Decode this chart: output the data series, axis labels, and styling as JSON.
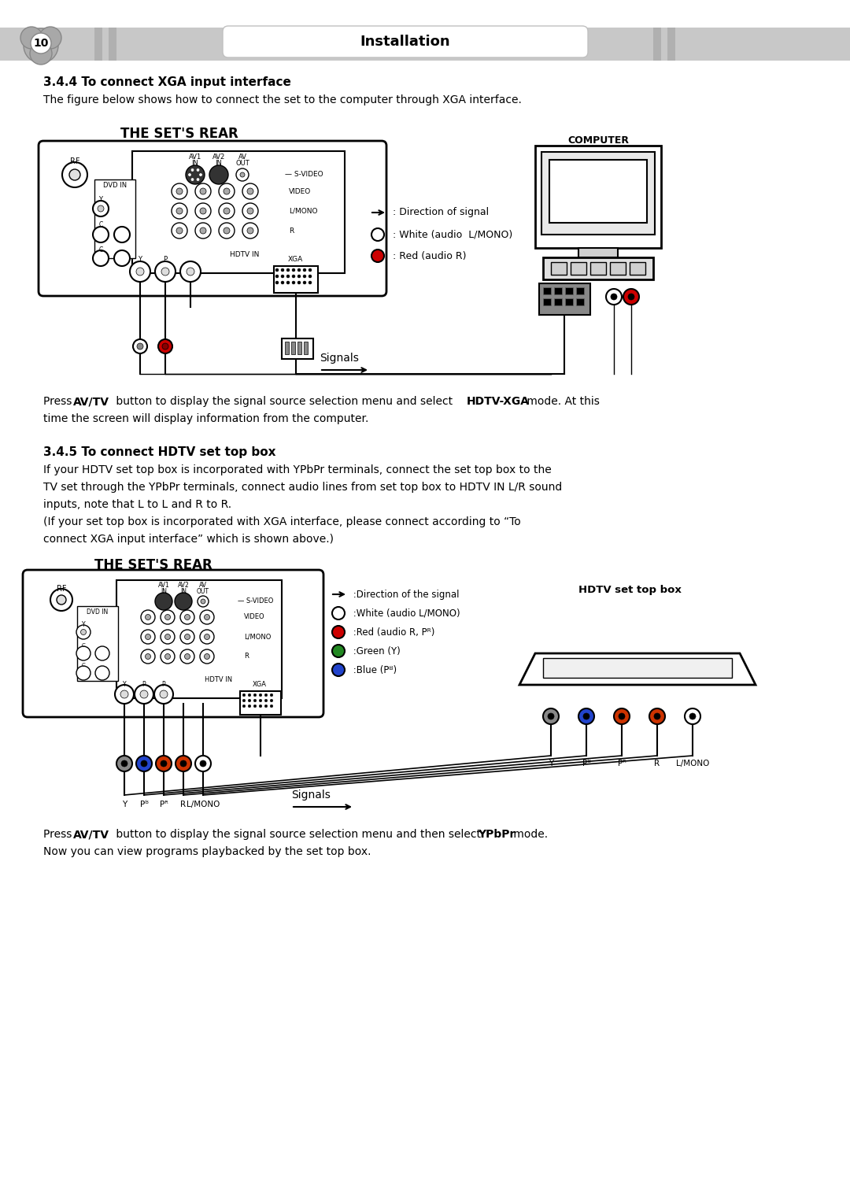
{
  "page_number": "10",
  "header_title": "Installation",
  "section1_heading": "3.4.4 To connect XGA input interface",
  "section1_desc": "The figure below shows how to connect the set to the computer through XGA interface.",
  "diagram1_title": "THE SET'S REAR",
  "diagram1_computer_label": "COMPUTER",
  "diagram1_signals_label": "Signals",
  "diagram1_legend": [
    " : Direction of signal",
    " : White (audio  L/MONO)",
    " : Red (audio R)"
  ],
  "section2_heading": "3.4.5 To connect HDTV set top box",
  "section2_desc1": "If your HDTV set top box is incorporated with YPbPr terminals, connect the set top box to the",
  "section2_desc2": "TV set through the YPbPr terminals, connect audio lines from set top box to HDTV IN L/R sound",
  "section2_desc3": "inputs, note that L to L and R to R.",
  "section2_desc4": "(If your set top box is incorporated with XGA interface, please connect according to “To",
  "section2_desc5": "connect XGA input interface” which is shown above.)",
  "diagram2_title": "THE SET'S REAR",
  "diagram2_hdtv_label": "HDTV set top box",
  "diagram2_signals_label": "Signals",
  "diagram2_legend": [
    " :Direction of the signal",
    " :White (audio L/MONO)",
    " :Red (audio R, Pᴿ)",
    " :Green (Y)",
    " :Blue (Pᴽ)"
  ],
  "bg_color": "#ffffff",
  "header_bg": "#c8c8c8"
}
